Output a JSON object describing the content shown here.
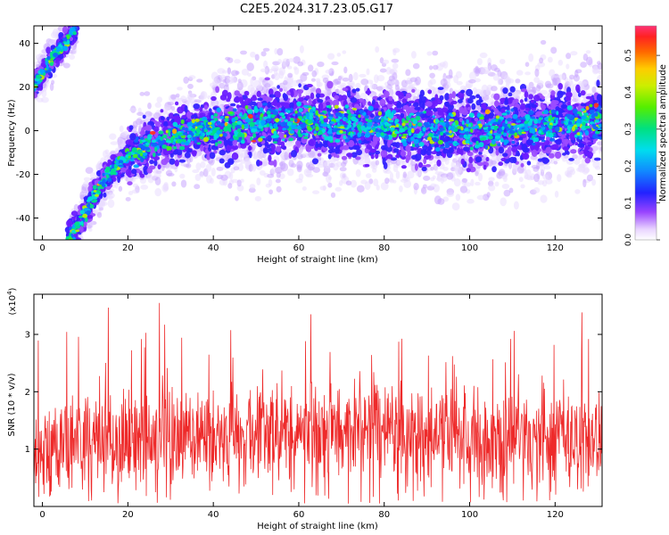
{
  "title": "C2E5.2024.317.23.05.G17",
  "colors": {
    "snr_line": "#ee2a2a",
    "frame": "#000000"
  },
  "chart_data": [
    {
      "type": "heatmap",
      "xlabel": "Height of straight line (km)",
      "ylabel": "Frequency (Hz)",
      "xlim": [
        -2,
        131
      ],
      "ylim": [
        -50,
        48
      ],
      "xticks": [
        0,
        20,
        40,
        60,
        80,
        100,
        120
      ],
      "yticks": [
        -40,
        -20,
        0,
        20,
        40
      ],
      "colorbar": {
        "label": "Normalized spectral amplitude",
        "range": [
          0,
          0.58
        ],
        "ticks": [
          0.0,
          0.1,
          0.2,
          0.3,
          0.4,
          0.5
        ],
        "tick_labels": [
          "0.0",
          "0.1",
          "0.2",
          "0.3",
          "0.4",
          "0.5"
        ]
      },
      "ridges": [
        {
          "x": [
            -2,
            0,
            2,
            4,
            6,
            8
          ],
          "y": [
            20,
            26,
            32,
            37,
            42,
            47
          ]
        },
        {
          "x": [
            6,
            8,
            10,
            12,
            14,
            16,
            18,
            20,
            22,
            24,
            26,
            30,
            35,
            40,
            50,
            60,
            70,
            80,
            90,
            100,
            110,
            120,
            131
          ],
          "y": [
            -50,
            -45,
            -38,
            -30,
            -24,
            -19,
            -15,
            -12,
            -10,
            -8,
            -6,
            -3,
            -1,
            1,
            3,
            4,
            3,
            2,
            0,
            0,
            1,
            3,
            3
          ]
        }
      ]
    },
    {
      "type": "line",
      "xlabel": "Height of straight line (km)",
      "ylabel": "SNR (10 * v/v)",
      "y_multiplier": "(x10",
      "y_multiplier_exp": "4",
      "xlim": [
        -2,
        131
      ],
      "ylim": [
        0,
        3.7
      ],
      "xticks": [
        0,
        20,
        40,
        60,
        80,
        100,
        120
      ],
      "yticks": [
        1,
        2,
        3
      ],
      "series": [
        {
          "generator": "noise",
          "base": [
            [
              -2,
              1.0
            ],
            [
              20,
              1.05
            ],
            [
              40,
              1.2
            ],
            [
              60,
              1.3
            ],
            [
              80,
              1.3
            ],
            [
              100,
              1.2
            ],
            [
              131,
              1.1
            ]
          ],
          "peak_max": 3.7,
          "n": 1300
        }
      ]
    }
  ]
}
